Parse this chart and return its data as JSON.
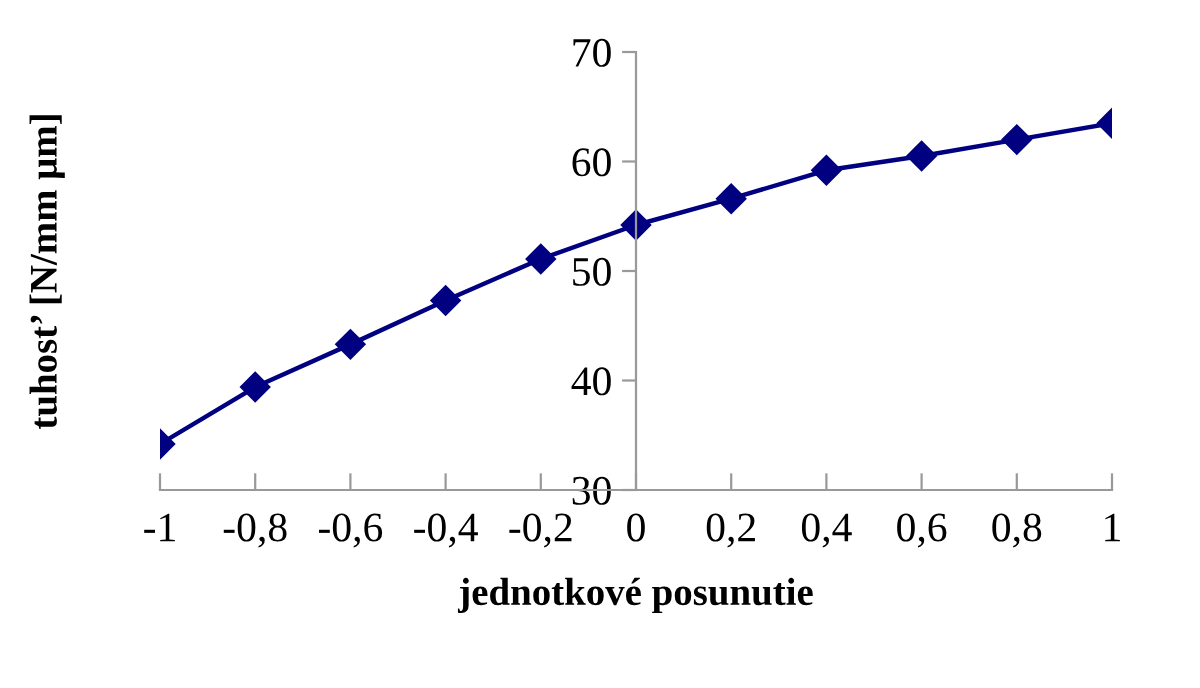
{
  "chart_data": {
    "type": "line",
    "xlabel": "jednotkové posunutie",
    "ylabel": "tuhost’ [N/mm μm]",
    "x": [
      -1,
      -0.8,
      -0.6,
      -0.4,
      -0.2,
      0,
      0.2,
      0.4,
      0.6,
      0.8,
      1
    ],
    "series": [
      {
        "color": "#000080",
        "values": [
          34.2,
          39.4,
          43.3,
          47.3,
          51.1,
          54.2,
          56.6,
          59.2,
          60.5,
          62.0,
          63.5
        ]
      }
    ],
    "xlim": [
      -1,
      1
    ],
    "ylim": [
      30,
      70
    ],
    "xticks": [
      {
        "value": -1,
        "label": "-1"
      },
      {
        "value": -0.8,
        "label": "-0,8"
      },
      {
        "value": -0.6,
        "label": "-0,6"
      },
      {
        "value": -0.4,
        "label": "-0,4"
      },
      {
        "value": -0.2,
        "label": "-0,2"
      },
      {
        "value": 0,
        "label": "0"
      },
      {
        "value": 0.2,
        "label": "0,2"
      },
      {
        "value": 0.4,
        "label": "0,4"
      },
      {
        "value": 0.6,
        "label": "0,6"
      },
      {
        "value": 0.8,
        "label": "0,8"
      },
      {
        "value": 1,
        "label": "1"
      }
    ],
    "yticks": [
      30,
      40,
      50,
      60,
      70
    ],
    "marker": "diamond",
    "line_style": "solid",
    "grid": false,
    "legend": false
  }
}
